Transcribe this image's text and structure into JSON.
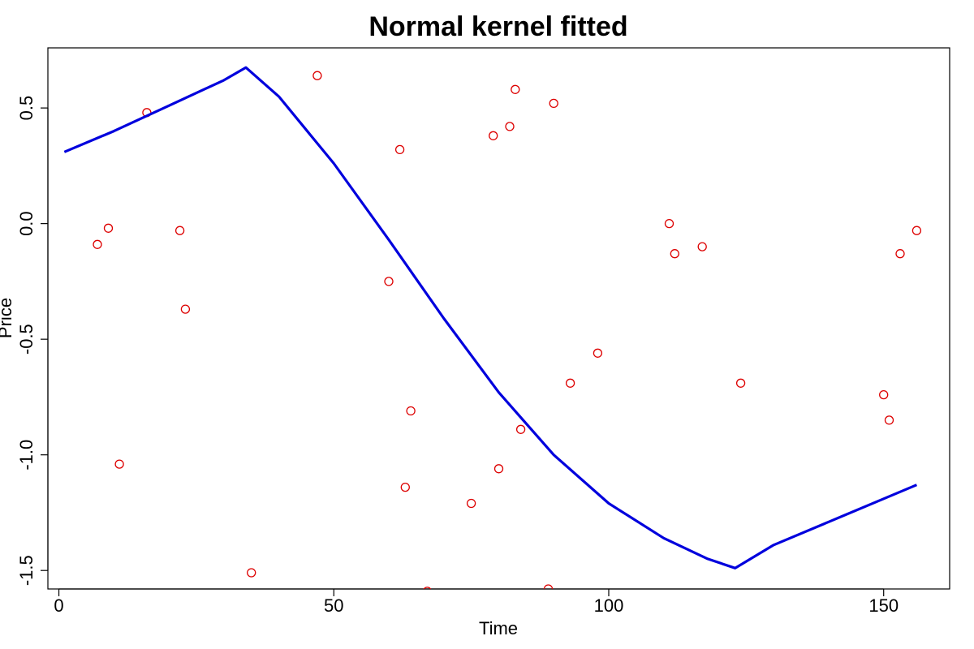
{
  "chart_data": {
    "type": "scatter",
    "title": "Normal kernel fitted",
    "xlabel": "Time",
    "ylabel": "Price",
    "xlim": [
      -2,
      162
    ],
    "ylim": [
      -1.58,
      0.76
    ],
    "x_ticks": [
      0,
      50,
      100,
      150
    ],
    "x_tick_labels": [
      "0",
      "50",
      "100",
      "150"
    ],
    "y_ticks": [
      -1.5,
      -1.0,
      -0.5,
      0.0,
      0.5
    ],
    "y_tick_labels": [
      "-1.5",
      "-1.0",
      "-0.5",
      "0.0",
      "0.5"
    ],
    "grid": false,
    "series": [
      {
        "kind": "points",
        "marker": "open-circle",
        "color": "#dd0000",
        "points": [
          [
            7,
            -0.09
          ],
          [
            9,
            -0.02
          ],
          [
            11,
            -1.04
          ],
          [
            16,
            0.48
          ],
          [
            22,
            -0.03
          ],
          [
            23,
            -0.37
          ],
          [
            35,
            -1.51
          ],
          [
            47,
            0.64
          ],
          [
            60,
            -0.25
          ],
          [
            62,
            0.32
          ],
          [
            63,
            -1.14
          ],
          [
            64,
            -0.81
          ],
          [
            67,
            -1.59
          ],
          [
            75,
            -1.21
          ],
          [
            79,
            0.38
          ],
          [
            80,
            -1.06
          ],
          [
            82,
            0.42
          ],
          [
            83,
            0.58
          ],
          [
            84,
            -0.89
          ],
          [
            89,
            -1.58
          ],
          [
            90,
            0.52
          ],
          [
            93,
            -0.69
          ],
          [
            98,
            -0.56
          ],
          [
            111,
            0.0
          ],
          [
            112,
            -0.13
          ],
          [
            117,
            -0.1
          ],
          [
            124,
            -0.69
          ],
          [
            150,
            -0.74
          ],
          [
            151,
            -0.85
          ],
          [
            153,
            -0.13
          ],
          [
            156,
            -0.03
          ]
        ]
      },
      {
        "kind": "line",
        "color": "#0000dd",
        "points": [
          [
            1,
            0.31
          ],
          [
            10,
            0.4
          ],
          [
            20,
            0.51
          ],
          [
            30,
            0.62
          ],
          [
            34,
            0.675
          ],
          [
            40,
            0.55
          ],
          [
            50,
            0.26
          ],
          [
            60,
            -0.07
          ],
          [
            70,
            -0.41
          ],
          [
            80,
            -0.73
          ],
          [
            90,
            -1.0
          ],
          [
            100,
            -1.21
          ],
          [
            110,
            -1.36
          ],
          [
            118,
            -1.45
          ],
          [
            123,
            -1.49
          ],
          [
            130,
            -1.39
          ],
          [
            140,
            -1.29
          ],
          [
            150,
            -1.19
          ],
          [
            156,
            -1.13
          ]
        ]
      }
    ]
  }
}
